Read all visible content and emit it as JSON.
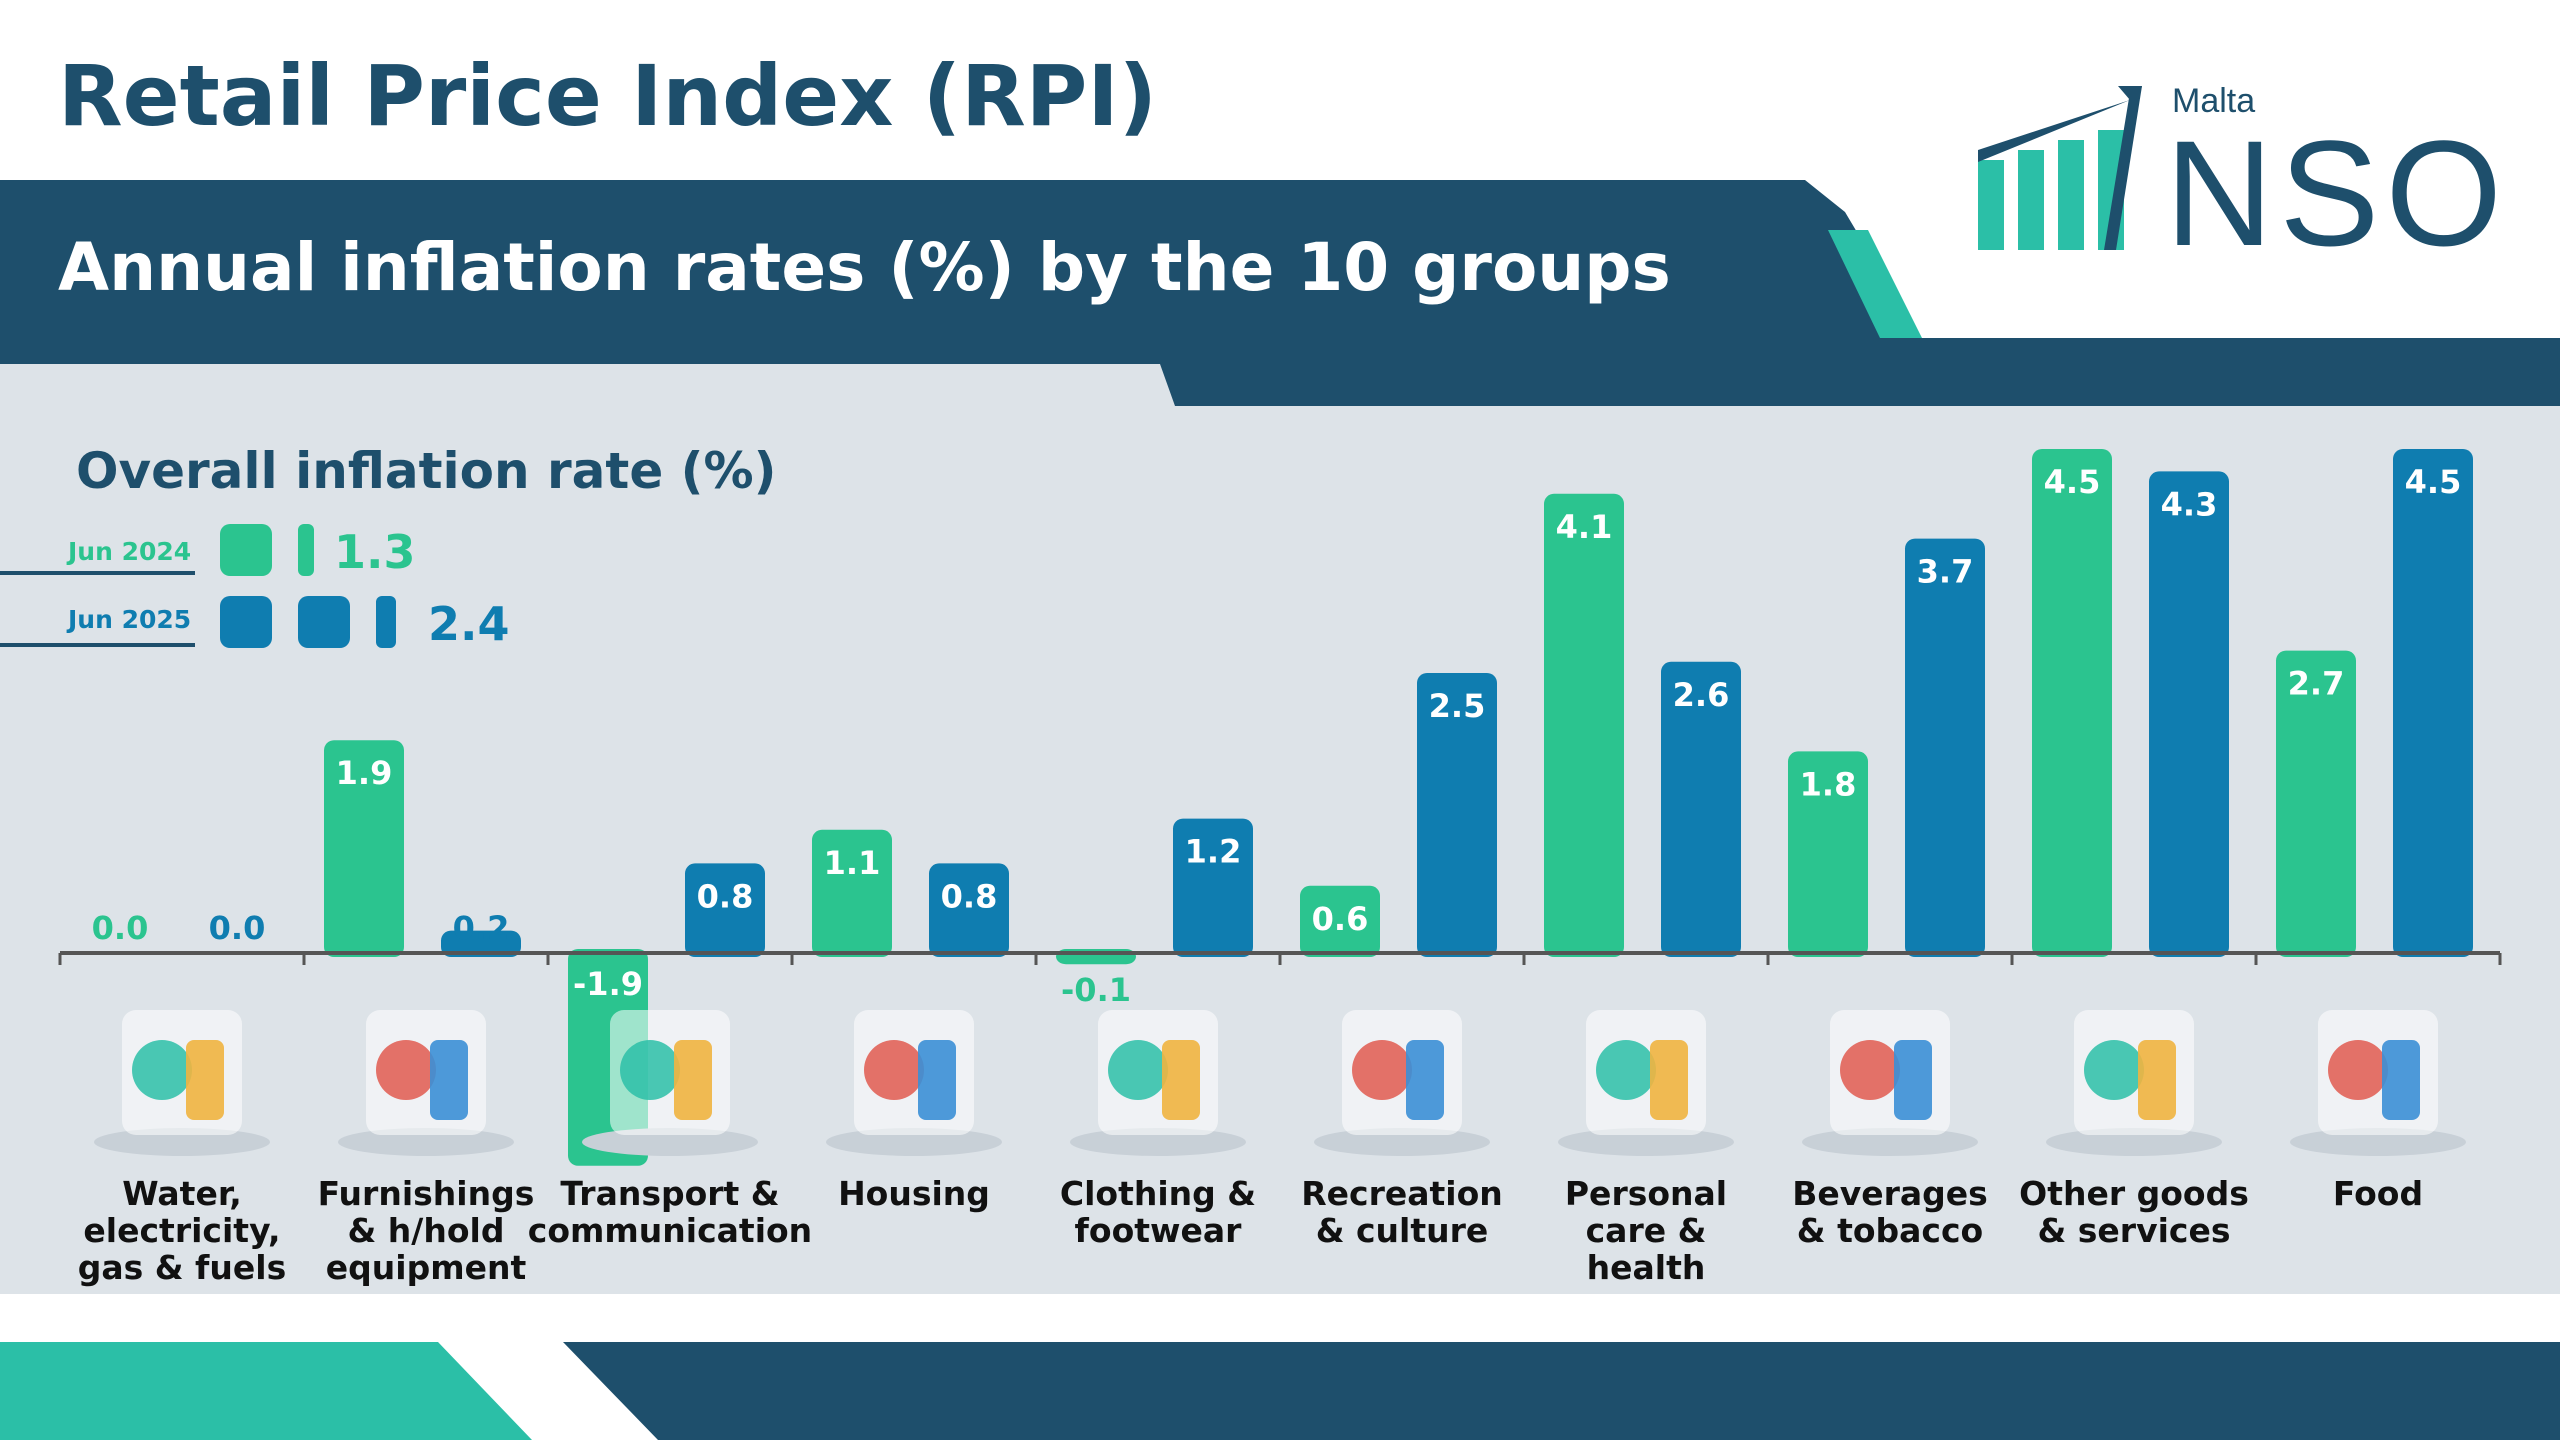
{
  "header": {
    "title": "Retail Price Index (RPI)",
    "subtitle": "Annual inflation rates (%) by the 10 groups"
  },
  "logo": {
    "country": "Malta",
    "name": "NSO"
  },
  "overall": {
    "title": "Overall inflation rate (%)",
    "rows": [
      {
        "label": "Jun 2024",
        "value": "1.3",
        "color": "#2bc48f"
      },
      {
        "label": "Jun 2025",
        "value": "2.4",
        "color": "#0f7db0"
      }
    ]
  },
  "colors": {
    "jun2024": "#2bc48f",
    "jun2025": "#0f7db0",
    "navy": "#1e4f6c",
    "teal": "#2bbfa7",
    "panel": "#dde3e8"
  },
  "chart_data": {
    "type": "bar",
    "categories": [
      [
        "Water,",
        "electricity,",
        "gas & fuels"
      ],
      [
        "Furnishings",
        "& h/hold",
        "equipment"
      ],
      [
        "Transport &",
        "communication"
      ],
      [
        "Housing"
      ],
      [
        "Clothing &",
        "footwear"
      ],
      [
        "Recreation",
        "& culture"
      ],
      [
        "Personal",
        "care &",
        "health"
      ],
      [
        "Beverages",
        "& tobacco"
      ],
      [
        "Other goods",
        "& services"
      ],
      [
        "Food"
      ]
    ],
    "icons": [
      "utilities-icon",
      "furniture-room-icon",
      "bus-motorbike-icon",
      "houses-icon",
      "shoes-icon",
      "art-dancers-icon",
      "heart-cosmetics-icon",
      "bottles-cigarettes-icon",
      "watch-shield-icon",
      "picnic-basket-icon"
    ],
    "series": [
      {
        "name": "Jun 2024",
        "values": [
          0.0,
          1.9,
          -1.9,
          1.1,
          -0.1,
          0.6,
          4.1,
          1.8,
          4.5,
          2.7
        ],
        "labels": [
          "0.0",
          "1.9",
          "-1.9",
          "1.1",
          "-0.1",
          "0.6",
          "4.1",
          "1.8",
          "4.5",
          "2.7"
        ]
      },
      {
        "name": "Jun 2025",
        "values": [
          0.0,
          0.2,
          0.8,
          0.8,
          1.2,
          2.5,
          2.6,
          3.7,
          4.3,
          4.5
        ],
        "labels": [
          "0.0",
          "0.2",
          "0.8",
          "0.8",
          "1.2",
          "2.5",
          "2.6",
          "3.7",
          "4.3",
          "4.5"
        ]
      }
    ]
  }
}
